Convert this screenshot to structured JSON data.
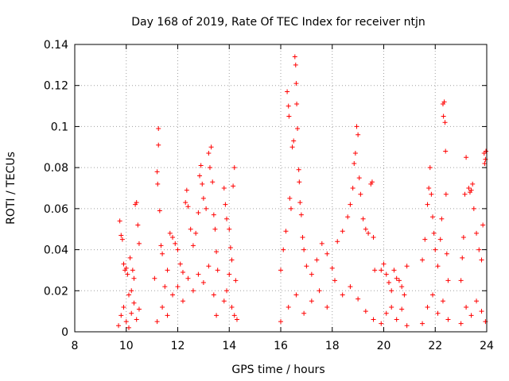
{
  "chart_data": {
    "type": "scatter",
    "title": "Day 168 of 2019, Rate Of TEC Index for receiver ntjn",
    "xlabel": "GPS time / hours",
    "ylabel": "ROTI / TECUs",
    "xlim": [
      8,
      24
    ],
    "ylim": [
      0,
      0.14
    ],
    "x_ticks": [
      "8",
      "10",
      "12",
      "14",
      "16",
      "18",
      "20",
      "22",
      "24"
    ],
    "y_ticks": [
      "0",
      "0.02",
      "0.04",
      "0.06",
      "0.08",
      "0.1",
      "0.12",
      "0.14"
    ],
    "grid": true,
    "marker": "+",
    "color": "#ff0000",
    "series": [
      {
        "name": "ROTI",
        "points": [
          [
            9.75,
            0.054
          ],
          [
            9.8,
            0.047
          ],
          [
            9.85,
            0.045
          ],
          [
            9.9,
            0.033
          ],
          [
            9.95,
            0.03
          ],
          [
            10.0,
            0.031
          ],
          [
            10.05,
            0.028
          ],
          [
            10.1,
            0.018
          ],
          [
            10.15,
            0.036
          ],
          [
            10.2,
            0.02
          ],
          [
            10.25,
            0.03
          ],
          [
            10.3,
            0.026
          ],
          [
            10.35,
            0.062
          ],
          [
            10.4,
            0.063
          ],
          [
            10.45,
            0.052
          ],
          [
            10.5,
            0.043
          ],
          [
            9.7,
            0.003
          ],
          [
            9.8,
            0.008
          ],
          [
            9.9,
            0.012
          ],
          [
            10.0,
            0.005
          ],
          [
            10.1,
            0.002
          ],
          [
            10.2,
            0.009
          ],
          [
            10.3,
            0.014
          ],
          [
            10.4,
            0.006
          ],
          [
            10.5,
            0.011
          ],
          [
            11.1,
            0.026
          ],
          [
            11.2,
            0.078
          ],
          [
            11.22,
            0.072
          ],
          [
            11.25,
            0.099
          ],
          [
            11.25,
            0.091
          ],
          [
            11.3,
            0.059
          ],
          [
            11.35,
            0.042
          ],
          [
            11.4,
            0.038
          ],
          [
            11.5,
            0.022
          ],
          [
            11.6,
            0.03
          ],
          [
            11.7,
            0.048
          ],
          [
            11.8,
            0.046
          ],
          [
            11.9,
            0.043
          ],
          [
            12.0,
            0.04
          ],
          [
            12.1,
            0.033
          ],
          [
            12.2,
            0.029
          ],
          [
            12.3,
            0.063
          ],
          [
            12.35,
            0.069
          ],
          [
            12.4,
            0.061
          ],
          [
            12.5,
            0.05
          ],
          [
            12.6,
            0.042
          ],
          [
            12.7,
            0.048
          ],
          [
            12.8,
            0.058
          ],
          [
            12.85,
            0.076
          ],
          [
            12.9,
            0.081
          ],
          [
            12.95,
            0.072
          ],
          [
            13.0,
            0.065
          ],
          [
            13.1,
            0.06
          ],
          [
            13.2,
            0.087
          ],
          [
            13.25,
            0.08
          ],
          [
            13.3,
            0.09
          ],
          [
            13.35,
            0.073
          ],
          [
            13.4,
            0.057
          ],
          [
            13.45,
            0.05
          ],
          [
            13.5,
            0.039
          ],
          [
            13.55,
            0.03
          ],
          [
            11.2,
            0.005
          ],
          [
            11.4,
            0.012
          ],
          [
            11.6,
            0.008
          ],
          [
            11.8,
            0.018
          ],
          [
            12.0,
            0.022
          ],
          [
            12.2,
            0.015
          ],
          [
            12.4,
            0.026
          ],
          [
            12.6,
            0.02
          ],
          [
            12.8,
            0.028
          ],
          [
            13.0,
            0.024
          ],
          [
            13.2,
            0.032
          ],
          [
            13.4,
            0.018
          ],
          [
            13.5,
            0.008
          ],
          [
            13.8,
            0.07
          ],
          [
            13.85,
            0.062
          ],
          [
            13.9,
            0.055
          ],
          [
            14.0,
            0.05
          ],
          [
            14.05,
            0.041
          ],
          [
            14.1,
            0.035
          ],
          [
            14.15,
            0.071
          ],
          [
            14.2,
            0.08
          ],
          [
            14.25,
            0.025
          ],
          [
            14.3,
            0.006
          ],
          [
            13.8,
            0.015
          ],
          [
            13.9,
            0.02
          ],
          [
            14.0,
            0.028
          ],
          [
            14.1,
            0.012
          ],
          [
            14.2,
            0.008
          ],
          [
            16.0,
            0.03
          ],
          [
            16.1,
            0.04
          ],
          [
            16.2,
            0.049
          ],
          [
            16.25,
            0.117
          ],
          [
            16.3,
            0.11
          ],
          [
            16.32,
            0.105
          ],
          [
            16.35,
            0.065
          ],
          [
            16.4,
            0.06
          ],
          [
            16.45,
            0.09
          ],
          [
            16.5,
            0.093
          ],
          [
            16.55,
            0.134
          ],
          [
            16.58,
            0.13
          ],
          [
            16.6,
            0.121
          ],
          [
            16.62,
            0.111
          ],
          [
            16.65,
            0.099
          ],
          [
            16.7,
            0.079
          ],
          [
            16.72,
            0.073
          ],
          [
            16.75,
            0.063
          ],
          [
            16.8,
            0.057
          ],
          [
            16.85,
            0.046
          ],
          [
            16.9,
            0.04
          ],
          [
            17.0,
            0.032
          ],
          [
            17.2,
            0.028
          ],
          [
            17.4,
            0.035
          ],
          [
            17.6,
            0.043
          ],
          [
            17.8,
            0.038
          ],
          [
            18.0,
            0.031
          ],
          [
            18.2,
            0.044
          ],
          [
            18.4,
            0.049
          ],
          [
            18.6,
            0.056
          ],
          [
            18.7,
            0.062
          ],
          [
            18.8,
            0.07
          ],
          [
            18.85,
            0.082
          ],
          [
            18.9,
            0.087
          ],
          [
            18.95,
            0.1
          ],
          [
            19.0,
            0.096
          ],
          [
            19.05,
            0.075
          ],
          [
            19.1,
            0.067
          ],
          [
            19.2,
            0.055
          ],
          [
            19.3,
            0.05
          ],
          [
            19.4,
            0.048
          ],
          [
            19.5,
            0.072
          ],
          [
            19.55,
            0.073
          ],
          [
            19.6,
            0.046
          ],
          [
            19.65,
            0.03
          ],
          [
            16.0,
            0.005
          ],
          [
            16.3,
            0.012
          ],
          [
            16.6,
            0.018
          ],
          [
            16.9,
            0.009
          ],
          [
            17.2,
            0.015
          ],
          [
            17.5,
            0.02
          ],
          [
            17.8,
            0.012
          ],
          [
            18.1,
            0.025
          ],
          [
            18.4,
            0.018
          ],
          [
            18.7,
            0.022
          ],
          [
            19.0,
            0.016
          ],
          [
            19.3,
            0.01
          ],
          [
            19.6,
            0.006
          ],
          [
            19.9,
            0.03
          ],
          [
            20.0,
            0.033
          ],
          [
            20.1,
            0.028
          ],
          [
            20.2,
            0.024
          ],
          [
            20.3,
            0.02
          ],
          [
            20.4,
            0.03
          ],
          [
            20.5,
            0.026
          ],
          [
            20.6,
            0.025
          ],
          [
            20.7,
            0.022
          ],
          [
            20.8,
            0.018
          ],
          [
            20.9,
            0.032
          ],
          [
            19.9,
            0.004
          ],
          [
            20.1,
            0.009
          ],
          [
            20.3,
            0.012
          ],
          [
            20.5,
            0.006
          ],
          [
            20.7,
            0.011
          ],
          [
            20.9,
            0.003
          ],
          [
            21.5,
            0.035
          ],
          [
            21.6,
            0.045
          ],
          [
            21.7,
            0.062
          ],
          [
            21.75,
            0.07
          ],
          [
            21.8,
            0.08
          ],
          [
            21.85,
            0.067
          ],
          [
            21.9,
            0.056
          ],
          [
            21.95,
            0.048
          ],
          [
            22.0,
            0.04
          ],
          [
            22.1,
            0.032
          ],
          [
            22.2,
            0.045
          ],
          [
            22.25,
            0.055
          ],
          [
            22.3,
            0.111
          ],
          [
            22.32,
            0.105
          ],
          [
            22.35,
            0.112
          ],
          [
            22.38,
            0.102
          ],
          [
            22.4,
            0.088
          ],
          [
            22.42,
            0.067
          ],
          [
            22.45,
            0.038
          ],
          [
            22.5,
            0.025
          ],
          [
            21.5,
            0.004
          ],
          [
            21.7,
            0.012
          ],
          [
            21.9,
            0.018
          ],
          [
            22.1,
            0.009
          ],
          [
            22.3,
            0.015
          ],
          [
            22.5,
            0.006
          ],
          [
            23.0,
            0.025
          ],
          [
            23.05,
            0.036
          ],
          [
            23.1,
            0.046
          ],
          [
            23.15,
            0.067
          ],
          [
            23.2,
            0.085
          ],
          [
            23.3,
            0.07
          ],
          [
            23.35,
            0.068
          ],
          [
            23.4,
            0.069
          ],
          [
            23.45,
            0.072
          ],
          [
            23.5,
            0.06
          ],
          [
            23.6,
            0.048
          ],
          [
            23.7,
            0.04
          ],
          [
            23.8,
            0.035
          ],
          [
            23.85,
            0.052
          ],
          [
            23.9,
            0.087
          ],
          [
            23.92,
            0.082
          ],
          [
            23.95,
            0.084
          ],
          [
            23.97,
            0.088
          ],
          [
            23.0,
            0.004
          ],
          [
            23.2,
            0.012
          ],
          [
            23.4,
            0.008
          ],
          [
            23.6,
            0.015
          ],
          [
            23.8,
            0.01
          ],
          [
            23.95,
            0.005
          ]
        ]
      }
    ]
  }
}
